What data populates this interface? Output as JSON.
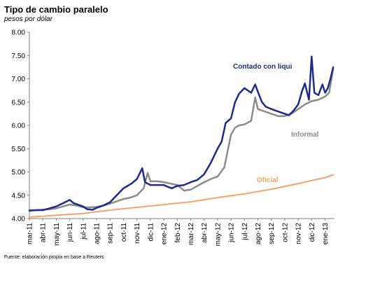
{
  "title": "Tipo de cambio paralelo",
  "subtitle": "pesos por dólar",
  "source": "Fuente: elaboración propia en base a Reuters",
  "chart_data": {
    "type": "line",
    "title": "Tipo de cambio paralelo",
    "ylabel": "pesos por dólar",
    "ylim": [
      4.0,
      8.0
    ],
    "yticks": [
      "4.00",
      "4.50",
      "5.00",
      "5.50",
      "6.00",
      "6.50",
      "7.00",
      "7.50",
      "8.00"
    ],
    "xlim": [
      0,
      22.7
    ],
    "xticks": [
      "mar-11",
      "abr-11",
      "may-11",
      "jun-11",
      "jul-11",
      "ago-11",
      "sep-11",
      "oct-11",
      "nov-11",
      "dic-11",
      "ene-12",
      "feb-12",
      "mar-12",
      "abr-12",
      "may-12",
      "jun-12",
      "jul-12",
      "ago-12",
      "sep-12",
      "oct-12",
      "nov-12",
      "dic-12",
      "ene-13"
    ],
    "grid": false,
    "legend": "inline labels",
    "series": [
      {
        "name": "Contado con liqui",
        "color": "#1f2a8c",
        "points": [
          [
            0,
            4.17
          ],
          [
            0.5,
            4.18
          ],
          [
            1,
            4.18
          ],
          [
            1.5,
            4.22
          ],
          [
            2,
            4.26
          ],
          [
            2.5,
            4.33
          ],
          [
            3,
            4.4
          ],
          [
            3.3,
            4.33
          ],
          [
            3.6,
            4.3
          ],
          [
            4,
            4.26
          ],
          [
            4.3,
            4.2
          ],
          [
            4.7,
            4.19
          ],
          [
            5,
            4.23
          ],
          [
            5.5,
            4.28
          ],
          [
            6,
            4.35
          ],
          [
            6.5,
            4.5
          ],
          [
            7,
            4.65
          ],
          [
            7.3,
            4.7
          ],
          [
            7.6,
            4.75
          ],
          [
            8,
            4.85
          ],
          [
            8.4,
            5.08
          ],
          [
            8.6,
            4.78
          ],
          [
            9,
            4.72
          ],
          [
            9.5,
            4.72
          ],
          [
            10,
            4.72
          ],
          [
            10.3,
            4.68
          ],
          [
            10.6,
            4.65
          ],
          [
            11,
            4.7
          ],
          [
            11.5,
            4.72
          ],
          [
            12,
            4.78
          ],
          [
            12.5,
            4.83
          ],
          [
            13,
            4.95
          ],
          [
            13.5,
            5.2
          ],
          [
            14,
            5.5
          ],
          [
            14.3,
            5.65
          ],
          [
            14.6,
            6.05
          ],
          [
            15,
            6.15
          ],
          [
            15.3,
            6.5
          ],
          [
            15.6,
            6.68
          ],
          [
            16,
            6.8
          ],
          [
            16.5,
            6.7
          ],
          [
            16.8,
            6.88
          ],
          [
            17,
            6.72
          ],
          [
            17.3,
            6.5
          ],
          [
            17.6,
            6.4
          ],
          [
            18,
            6.35
          ],
          [
            18.5,
            6.3
          ],
          [
            19,
            6.25
          ],
          [
            19.3,
            6.22
          ],
          [
            19.6,
            6.3
          ],
          [
            20,
            6.45
          ],
          [
            20.3,
            6.75
          ],
          [
            20.5,
            6.9
          ],
          [
            20.8,
            6.55
          ],
          [
            21,
            7.48
          ],
          [
            21.2,
            6.7
          ],
          [
            21.5,
            6.65
          ],
          [
            21.8,
            6.88
          ],
          [
            22,
            6.7
          ],
          [
            22.2,
            6.8
          ],
          [
            22.4,
            7.0
          ],
          [
            22.6,
            7.25
          ]
        ]
      },
      {
        "name": "Informal",
        "color": "#8c8c8c",
        "points": [
          [
            0,
            4.18
          ],
          [
            0.5,
            4.18
          ],
          [
            1,
            4.19
          ],
          [
            1.5,
            4.2
          ],
          [
            2,
            4.22
          ],
          [
            2.5,
            4.26
          ],
          [
            3,
            4.3
          ],
          [
            3.5,
            4.28
          ],
          [
            4,
            4.24
          ],
          [
            4.5,
            4.24
          ],
          [
            5,
            4.25
          ],
          [
            5.5,
            4.28
          ],
          [
            6,
            4.32
          ],
          [
            6.5,
            4.37
          ],
          [
            7,
            4.42
          ],
          [
            7.5,
            4.45
          ],
          [
            8,
            4.5
          ],
          [
            8.5,
            4.65
          ],
          [
            8.8,
            4.98
          ],
          [
            9,
            4.8
          ],
          [
            9.5,
            4.8
          ],
          [
            10,
            4.78
          ],
          [
            10.5,
            4.75
          ],
          [
            11,
            4.72
          ],
          [
            11.5,
            4.6
          ],
          [
            12,
            4.62
          ],
          [
            12.5,
            4.7
          ],
          [
            13,
            4.78
          ],
          [
            13.5,
            4.85
          ],
          [
            14,
            4.9
          ],
          [
            14.5,
            5.1
          ],
          [
            15,
            5.8
          ],
          [
            15.3,
            5.95
          ],
          [
            15.6,
            6.0
          ],
          [
            16,
            6.02
          ],
          [
            16.5,
            6.1
          ],
          [
            16.8,
            6.6
          ],
          [
            17,
            6.35
          ],
          [
            17.5,
            6.3
          ],
          [
            18,
            6.25
          ],
          [
            18.5,
            6.2
          ],
          [
            19,
            6.2
          ],
          [
            19.5,
            6.25
          ],
          [
            20,
            6.35
          ],
          [
            20.5,
            6.45
          ],
          [
            21,
            6.52
          ],
          [
            21.5,
            6.55
          ],
          [
            22,
            6.62
          ],
          [
            22.3,
            6.7
          ],
          [
            22.6,
            7.22
          ]
        ]
      },
      {
        "name": "Oficial",
        "color": "#f4a46a",
        "points": [
          [
            0,
            4.03
          ],
          [
            2,
            4.07
          ],
          [
            4,
            4.11
          ],
          [
            6,
            4.18
          ],
          [
            8,
            4.24
          ],
          [
            10,
            4.3
          ],
          [
            12,
            4.36
          ],
          [
            14,
            4.45
          ],
          [
            16,
            4.53
          ],
          [
            18,
            4.63
          ],
          [
            20,
            4.75
          ],
          [
            22,
            4.88
          ],
          [
            22.6,
            4.94
          ]
        ]
      }
    ]
  }
}
